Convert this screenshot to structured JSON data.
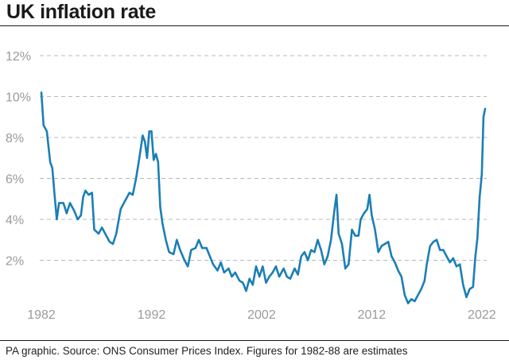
{
  "title": "UK inflation rate",
  "source": "PA graphic. Source: ONS Consumer Prices Index. Figures for 1982-88 are estimates",
  "colors": {
    "line": "#1b7fb5",
    "grid": "#b8b8b8",
    "axis_text": "#9a9a9a"
  },
  "chart_data": {
    "type": "line",
    "title": "UK inflation rate",
    "xlabel": "",
    "ylabel": "",
    "xlim": [
      1982,
      2022.3
    ],
    "ylim": [
      0,
      12
    ],
    "y_ticks": [
      2,
      4,
      6,
      8,
      10,
      12
    ],
    "y_tick_labels": [
      "2%",
      "4%",
      "6%",
      "8%",
      "10%",
      "12%"
    ],
    "x_ticks": [
      1982,
      1992,
      2002,
      2012,
      2022
    ],
    "x_tick_labels": [
      "1982",
      "1992",
      "2002",
      "2012",
      "2022"
    ],
    "grid": "horizontal dashed",
    "series": [
      {
        "values": [
          [
            1982.0,
            10.2
          ],
          [
            1982.2,
            8.6
          ],
          [
            1982.5,
            8.3
          ],
          [
            1982.8,
            6.8
          ],
          [
            1983.0,
            6.5
          ],
          [
            1983.2,
            5.2
          ],
          [
            1983.4,
            4.0
          ],
          [
            1983.6,
            4.8
          ],
          [
            1984.0,
            4.8
          ],
          [
            1984.3,
            4.3
          ],
          [
            1984.6,
            4.8
          ],
          [
            1985.0,
            4.4
          ],
          [
            1985.3,
            4.0
          ],
          [
            1985.6,
            4.2
          ],
          [
            1985.8,
            5.1
          ],
          [
            1986.0,
            5.4
          ],
          [
            1986.3,
            5.2
          ],
          [
            1986.6,
            5.3
          ],
          [
            1986.8,
            3.5
          ],
          [
            1987.2,
            3.3
          ],
          [
            1987.5,
            3.6
          ],
          [
            1987.8,
            3.3
          ],
          [
            1988.2,
            2.9
          ],
          [
            1988.5,
            2.8
          ],
          [
            1988.8,
            3.3
          ],
          [
            1989.2,
            4.5
          ],
          [
            1989.5,
            4.8
          ],
          [
            1990.0,
            5.3
          ],
          [
            1990.3,
            5.2
          ],
          [
            1990.6,
            6.0
          ],
          [
            1990.9,
            7.0
          ],
          [
            1991.2,
            8.1
          ],
          [
            1991.4,
            7.8
          ],
          [
            1991.6,
            7.0
          ],
          [
            1991.8,
            8.3
          ],
          [
            1992.0,
            8.3
          ],
          [
            1992.2,
            6.9
          ],
          [
            1992.4,
            7.2
          ],
          [
            1992.6,
            6.8
          ],
          [
            1992.8,
            4.6
          ],
          [
            1993.0,
            3.8
          ],
          [
            1993.3,
            3.0
          ],
          [
            1993.6,
            2.4
          ],
          [
            1994.0,
            2.3
          ],
          [
            1994.3,
            3.0
          ],
          [
            1994.6,
            2.5
          ],
          [
            1995.0,
            2.0
          ],
          [
            1995.3,
            1.7
          ],
          [
            1995.6,
            2.5
          ],
          [
            1996.0,
            2.6
          ],
          [
            1996.3,
            3.0
          ],
          [
            1996.6,
            2.6
          ],
          [
            1997.0,
            2.6
          ],
          [
            1997.3,
            2.2
          ],
          [
            1997.6,
            1.8
          ],
          [
            1998.0,
            1.5
          ],
          [
            1998.3,
            1.9
          ],
          [
            1998.6,
            1.4
          ],
          [
            1999.0,
            1.6
          ],
          [
            1999.3,
            1.2
          ],
          [
            1999.6,
            1.4
          ],
          [
            2000.0,
            1.0
          ],
          [
            2000.3,
            0.9
          ],
          [
            2000.6,
            0.5
          ],
          [
            2000.9,
            1.1
          ],
          [
            2001.2,
            0.8
          ],
          [
            2001.5,
            1.7
          ],
          [
            2001.8,
            1.2
          ],
          [
            2002.1,
            1.7
          ],
          [
            2002.4,
            0.9
          ],
          [
            2002.7,
            1.2
          ],
          [
            2003.0,
            1.4
          ],
          [
            2003.3,
            1.7
          ],
          [
            2003.6,
            1.2
          ],
          [
            2004.0,
            1.6
          ],
          [
            2004.3,
            1.2
          ],
          [
            2004.6,
            1.1
          ],
          [
            2005.0,
            1.6
          ],
          [
            2005.3,
            1.3
          ],
          [
            2005.6,
            2.2
          ],
          [
            2005.9,
            2.4
          ],
          [
            2006.2,
            2.0
          ],
          [
            2006.5,
            2.5
          ],
          [
            2006.8,
            2.4
          ],
          [
            2007.1,
            3.0
          ],
          [
            2007.4,
            2.5
          ],
          [
            2007.7,
            1.8
          ],
          [
            2008.0,
            2.2
          ],
          [
            2008.3,
            3.0
          ],
          [
            2008.6,
            4.4
          ],
          [
            2008.8,
            5.2
          ],
          [
            2009.0,
            3.3
          ],
          [
            2009.3,
            2.8
          ],
          [
            2009.6,
            1.6
          ],
          [
            2009.9,
            1.8
          ],
          [
            2010.2,
            3.5
          ],
          [
            2010.5,
            3.2
          ],
          [
            2010.8,
            3.2
          ],
          [
            2011.0,
            4.0
          ],
          [
            2011.3,
            4.3
          ],
          [
            2011.6,
            4.5
          ],
          [
            2011.8,
            5.2
          ],
          [
            2012.0,
            4.2
          ],
          [
            2012.3,
            3.5
          ],
          [
            2012.6,
            2.4
          ],
          [
            2012.9,
            2.7
          ],
          [
            2013.2,
            2.8
          ],
          [
            2013.5,
            2.9
          ],
          [
            2013.8,
            2.2
          ],
          [
            2014.1,
            1.9
          ],
          [
            2014.4,
            1.5
          ],
          [
            2014.7,
            1.2
          ],
          [
            2015.0,
            0.3
          ],
          [
            2015.3,
            -0.1
          ],
          [
            2015.6,
            0.1
          ],
          [
            2015.9,
            0.0
          ],
          [
            2016.2,
            0.3
          ],
          [
            2016.5,
            0.6
          ],
          [
            2016.8,
            1.0
          ],
          [
            2017.0,
            1.8
          ],
          [
            2017.3,
            2.7
          ],
          [
            2017.6,
            2.9
          ],
          [
            2017.9,
            3.0
          ],
          [
            2018.2,
            2.5
          ],
          [
            2018.5,
            2.5
          ],
          [
            2018.8,
            2.2
          ],
          [
            2019.1,
            1.9
          ],
          [
            2019.4,
            2.1
          ],
          [
            2019.7,
            1.7
          ],
          [
            2020.0,
            1.8
          ],
          [
            2020.3,
            0.8
          ],
          [
            2020.6,
            0.2
          ],
          [
            2020.9,
            0.6
          ],
          [
            2021.2,
            0.7
          ],
          [
            2021.4,
            2.1
          ],
          [
            2021.6,
            3.1
          ],
          [
            2021.8,
            5.1
          ],
          [
            2022.0,
            6.2
          ],
          [
            2022.15,
            9.0
          ],
          [
            2022.3,
            9.4
          ]
        ]
      }
    ]
  }
}
